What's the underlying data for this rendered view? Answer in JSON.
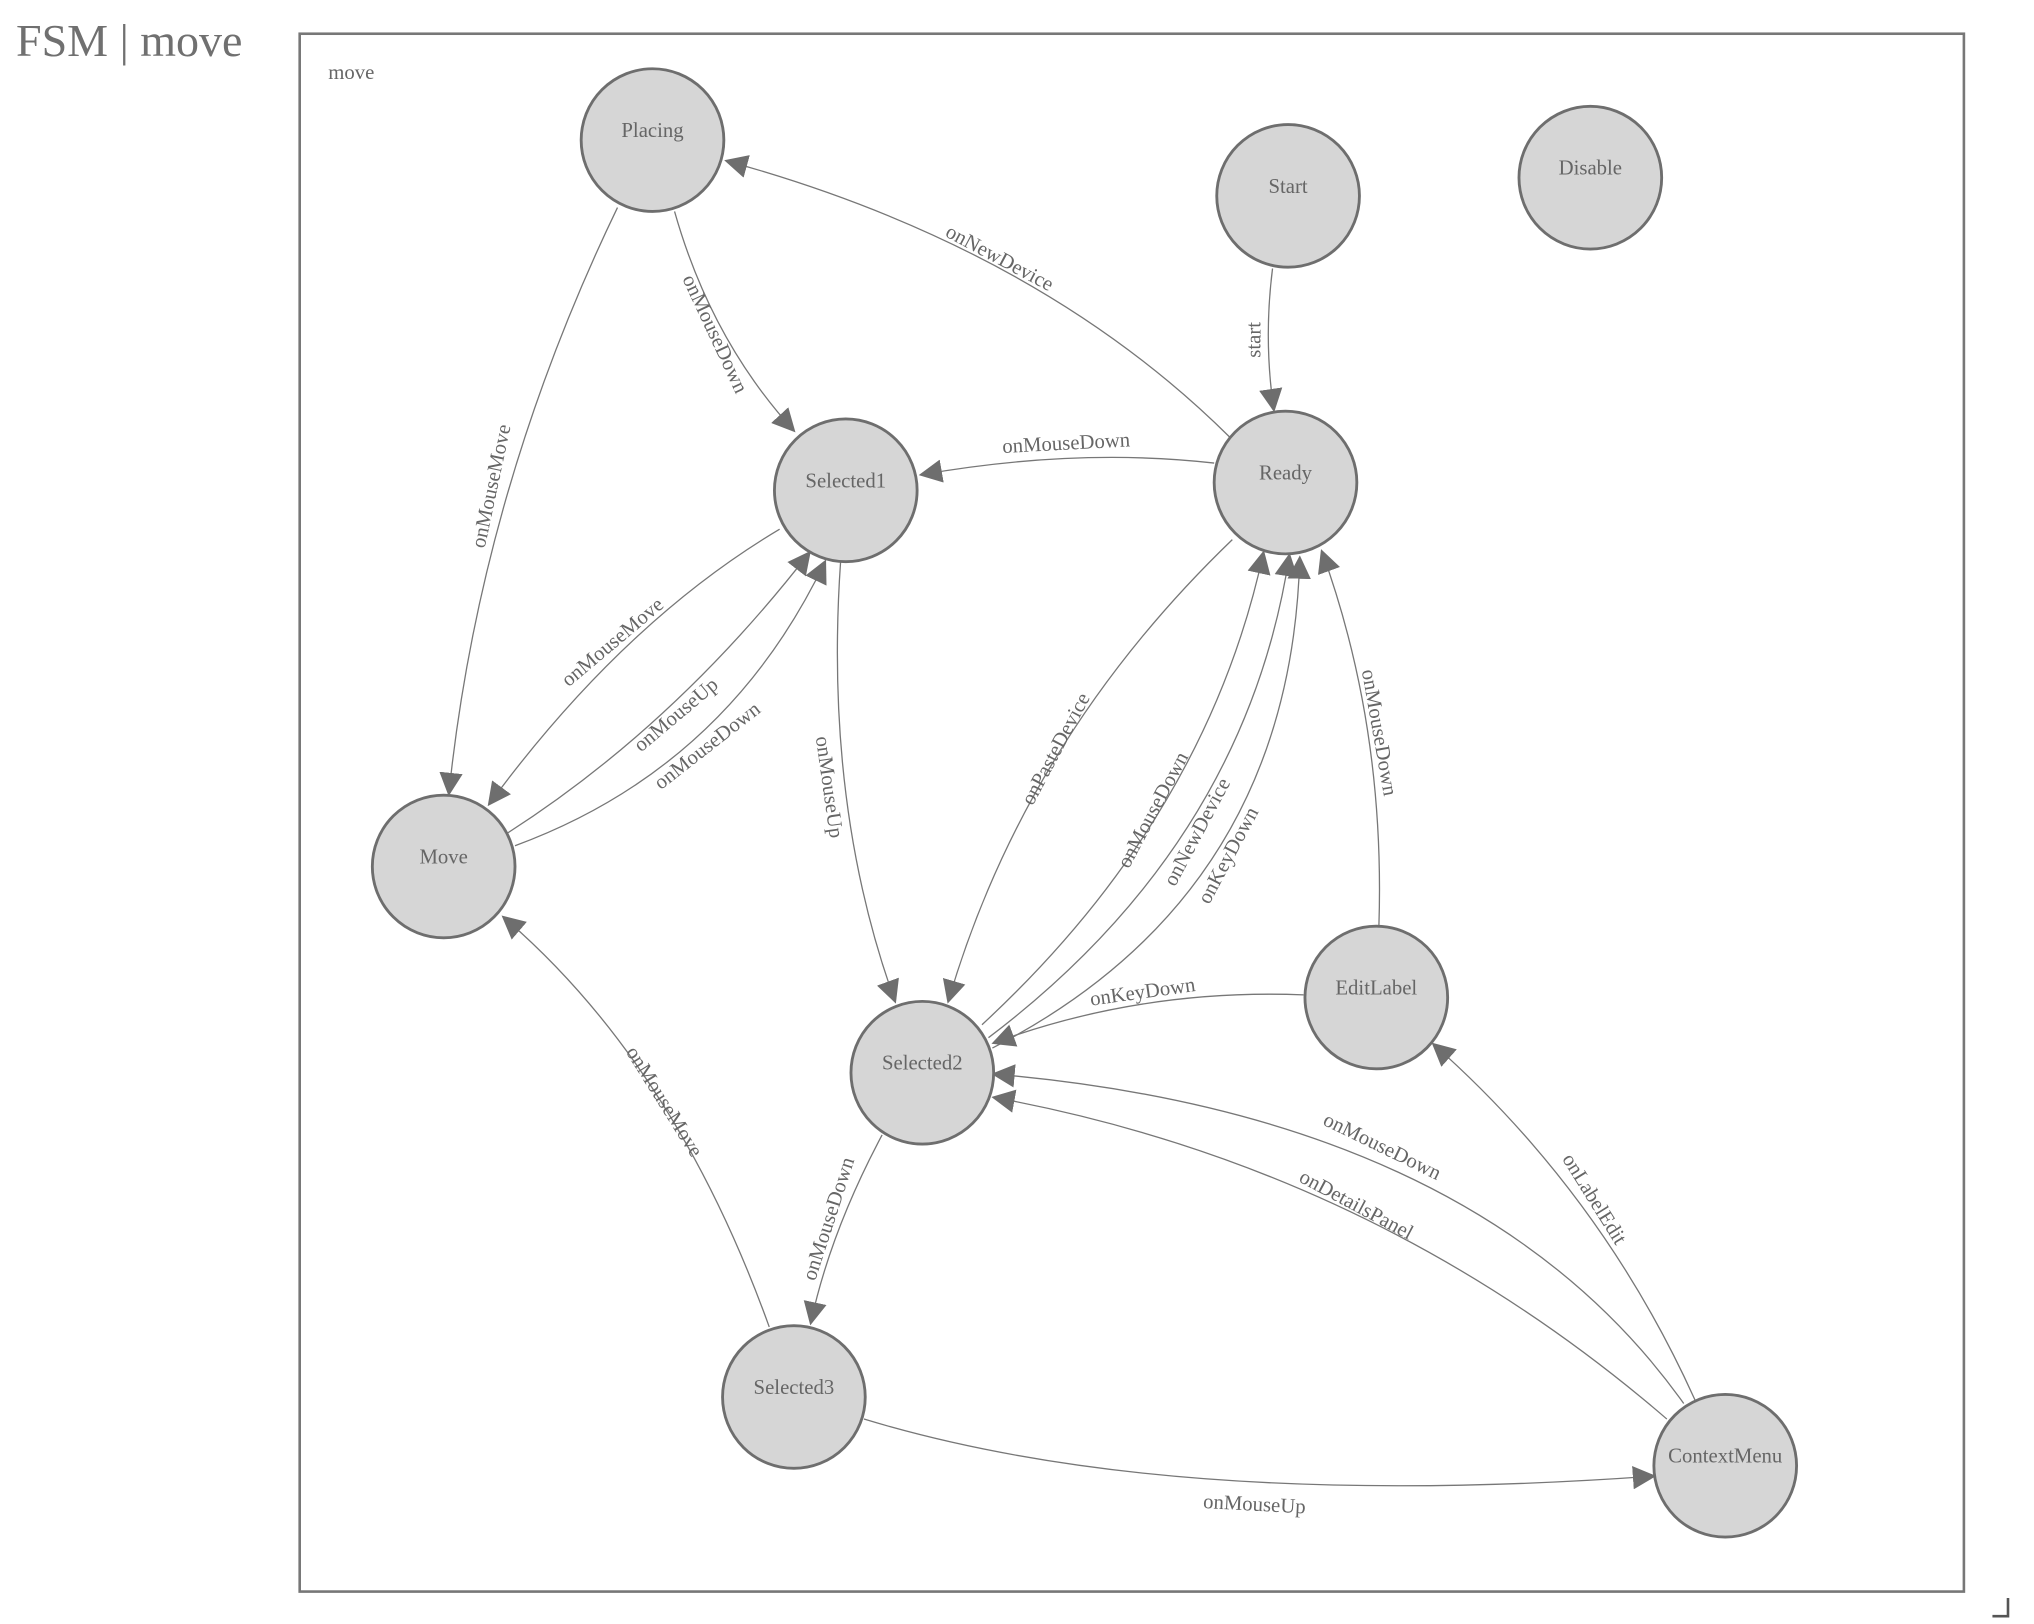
{
  "title": "FSM | move",
  "diagram": {
    "frame_label": "move",
    "colors": {
      "node_fill": "#d6d6d6",
      "stroke": "#6e6e6e",
      "text": "#666666"
    },
    "nodes": [
      {
        "id": "Placing",
        "label": "Placing"
      },
      {
        "id": "Start",
        "label": "Start"
      },
      {
        "id": "Disable",
        "label": "Disable"
      },
      {
        "id": "Selected1",
        "label": "Selected1"
      },
      {
        "id": "Ready",
        "label": "Ready"
      },
      {
        "id": "Move",
        "label": "Move"
      },
      {
        "id": "EditLabel",
        "label": "EditLabel"
      },
      {
        "id": "Selected2",
        "label": "Selected2"
      },
      {
        "id": "Selected3",
        "label": "Selected3"
      },
      {
        "id": "ContextMenu",
        "label": "ContextMenu"
      }
    ],
    "edges": [
      {
        "from": "Start",
        "to": "Ready",
        "label": "start"
      },
      {
        "from": "Ready",
        "to": "Placing",
        "label": "onNewDevice"
      },
      {
        "from": "Placing",
        "to": "Selected1",
        "label": "onMouseDown"
      },
      {
        "from": "Placing",
        "to": "Move",
        "label": "onMouseMove"
      },
      {
        "from": "Ready",
        "to": "Selected1",
        "label": "onMouseDown"
      },
      {
        "from": "Selected1",
        "to": "Move",
        "label": "onMouseMove"
      },
      {
        "from": "Move",
        "to": "Selected1",
        "label": "onMouseUp"
      },
      {
        "from": "Move",
        "to": "Selected1",
        "label": "onMouseDown"
      },
      {
        "from": "Selected1",
        "to": "Selected2",
        "label": "onMouseUp"
      },
      {
        "from": "Ready",
        "to": "Selected2",
        "label": "onPasteDevice"
      },
      {
        "from": "Selected2",
        "to": "Ready",
        "label": "onMouseDown"
      },
      {
        "from": "Selected2",
        "to": "Ready",
        "label": "onNewDevice"
      },
      {
        "from": "Selected2",
        "to": "Ready",
        "label": "onKeyDown"
      },
      {
        "from": "EditLabel",
        "to": "Ready",
        "label": "onMouseDown"
      },
      {
        "from": "EditLabel",
        "to": "Selected2",
        "label": "onKeyDown"
      },
      {
        "from": "Selected2",
        "to": "Selected3",
        "label": "onMouseDown"
      },
      {
        "from": "Selected3",
        "to": "Move",
        "label": "onMouseMove"
      },
      {
        "from": "Selected3",
        "to": "ContextMenu",
        "label": "onMouseUp"
      },
      {
        "from": "ContextMenu",
        "to": "Selected2",
        "label": "onMouseDown"
      },
      {
        "from": "ContextMenu",
        "to": "Selected2",
        "label": "onDetailsPanel"
      },
      {
        "from": "ContextMenu",
        "to": "EditLabel",
        "label": "onLabelEdit"
      }
    ]
  }
}
